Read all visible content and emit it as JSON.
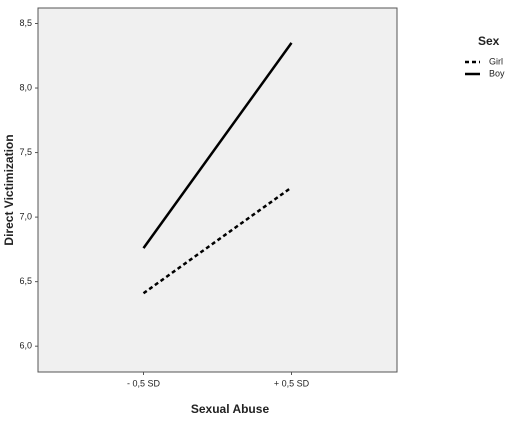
{
  "chart_data": {
    "type": "line",
    "x_label": "Sexual Abuse",
    "y_label": "Direct Victimization",
    "categories": [
      "- 0,5 SD",
      "+ 0,5 SD"
    ],
    "series": [
      {
        "name": "Girl",
        "color": "#000000",
        "line_style": "dashed",
        "values": [
          6.41,
          7.23
        ]
      },
      {
        "name": "Boy",
        "color": "#000000",
        "line_style": "solid",
        "values": [
          6.76,
          8.35
        ]
      }
    ],
    "legend_title": "Sex",
    "legend_position": "right",
    "ylim": [
      5.8,
      8.62
    ],
    "yticks": [
      {
        "value": 6.0,
        "label": "6,0"
      },
      {
        "value": 6.5,
        "label": "6,5"
      },
      {
        "value": 7.0,
        "label": "7,0"
      },
      {
        "value": 7.5,
        "label": "7,5"
      },
      {
        "value": 8.0,
        "label": "8,0"
      },
      {
        "value": 8.5,
        "label": "8,5"
      }
    ]
  }
}
